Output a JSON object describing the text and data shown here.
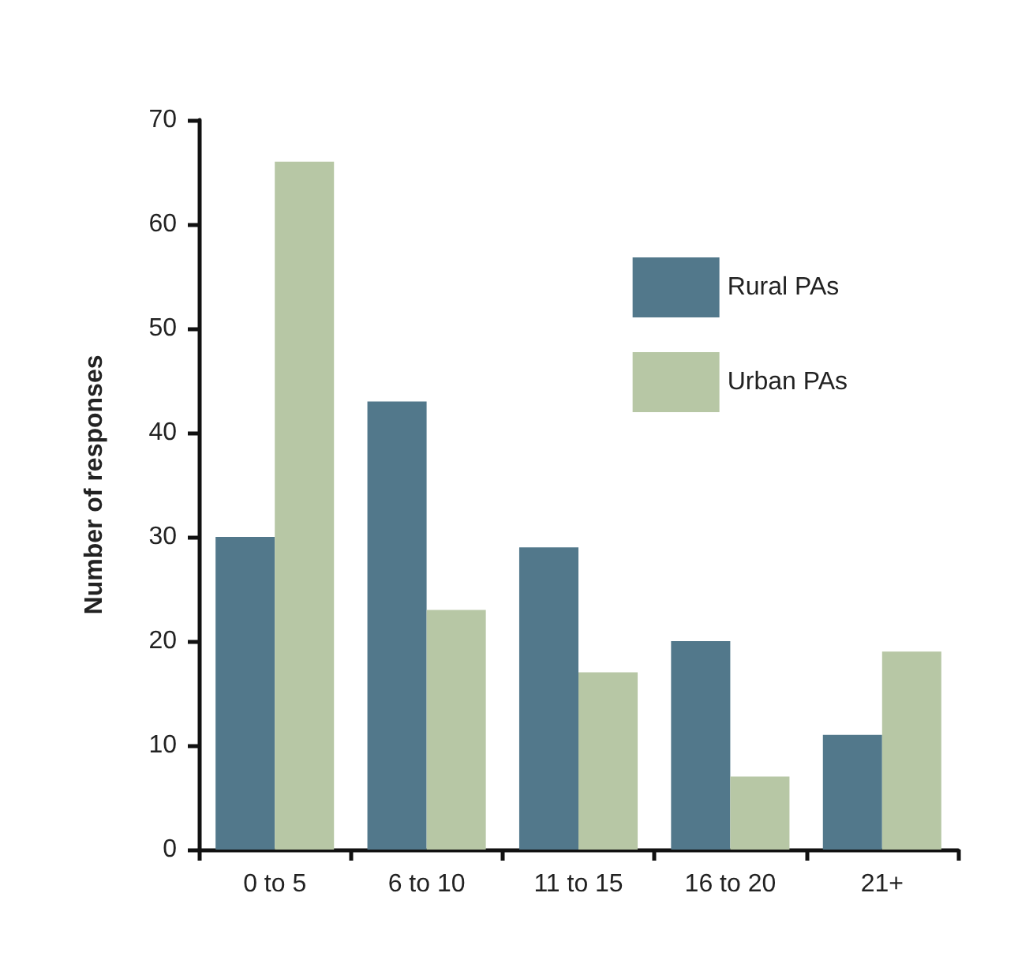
{
  "chart_data": {
    "type": "bar",
    "ylabel": "Number of responses",
    "categories": [
      "0 to 5",
      "6 to 10",
      "11 to 15",
      "16 to 20",
      "21+"
    ],
    "series": [
      {
        "name": "Rural PAs",
        "color": "#52788b",
        "values": [
          30,
          43,
          29,
          20,
          11
        ]
      },
      {
        "name": "Urban PAs",
        "color": "#b7c7a5",
        "values": [
          66,
          23,
          17,
          7,
          19
        ]
      }
    ],
    "ylim": [
      0,
      70
    ],
    "yticks": [
      0,
      10,
      20,
      30,
      40,
      50,
      60,
      70
    ],
    "grid": false,
    "legend": "top right"
  }
}
